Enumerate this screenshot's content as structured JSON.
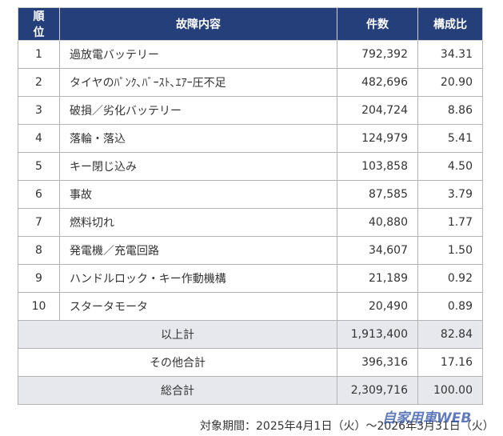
{
  "headers": {
    "rank": "順位",
    "content": "故障内容",
    "count": "件数",
    "ratio": "構成比"
  },
  "rows": [
    {
      "rank": "1",
      "content": "過放電バッテリー",
      "count": "792,392",
      "ratio": "34.31"
    },
    {
      "rank": "2",
      "content": "タイヤのﾊﾟﾝｸ､ﾊﾞｰｽﾄ､ｴｱｰ圧不足",
      "count": "482,696",
      "ratio": "20.90"
    },
    {
      "rank": "3",
      "content": "破損／劣化バッテリー",
      "count": "204,724",
      "ratio": "8.86"
    },
    {
      "rank": "4",
      "content": "落輪・落込",
      "count": "124,979",
      "ratio": "5.41"
    },
    {
      "rank": "5",
      "content": "キー閉じ込み",
      "count": "103,858",
      "ratio": "4.50"
    },
    {
      "rank": "6",
      "content": "事故",
      "count": "87,585",
      "ratio": "3.79"
    },
    {
      "rank": "7",
      "content": "燃料切れ",
      "count": "40,880",
      "ratio": "1.77"
    },
    {
      "rank": "8",
      "content": "発電機／充電回路",
      "count": "34,607",
      "ratio": "1.50"
    },
    {
      "rank": "9",
      "content": "ハンドルロック・キー作動機構",
      "count": "21,189",
      "ratio": "0.92"
    },
    {
      "rank": "10",
      "content": "スタータモータ",
      "count": "20,490",
      "ratio": "0.89"
    }
  ],
  "totals": [
    {
      "label": "以上計",
      "count": "1,913,400",
      "ratio": "82.84",
      "shaded": true
    },
    {
      "label": "その他合計",
      "count": "396,316",
      "ratio": "17.16",
      "shaded": false
    },
    {
      "label": "総合計",
      "count": "2,309,716",
      "ratio": "100.00",
      "shaded": true
    }
  ],
  "footer": "対象期間：2025年4月1日（火）～2026年3月31日（火）",
  "watermark": "自家用車WEB"
}
